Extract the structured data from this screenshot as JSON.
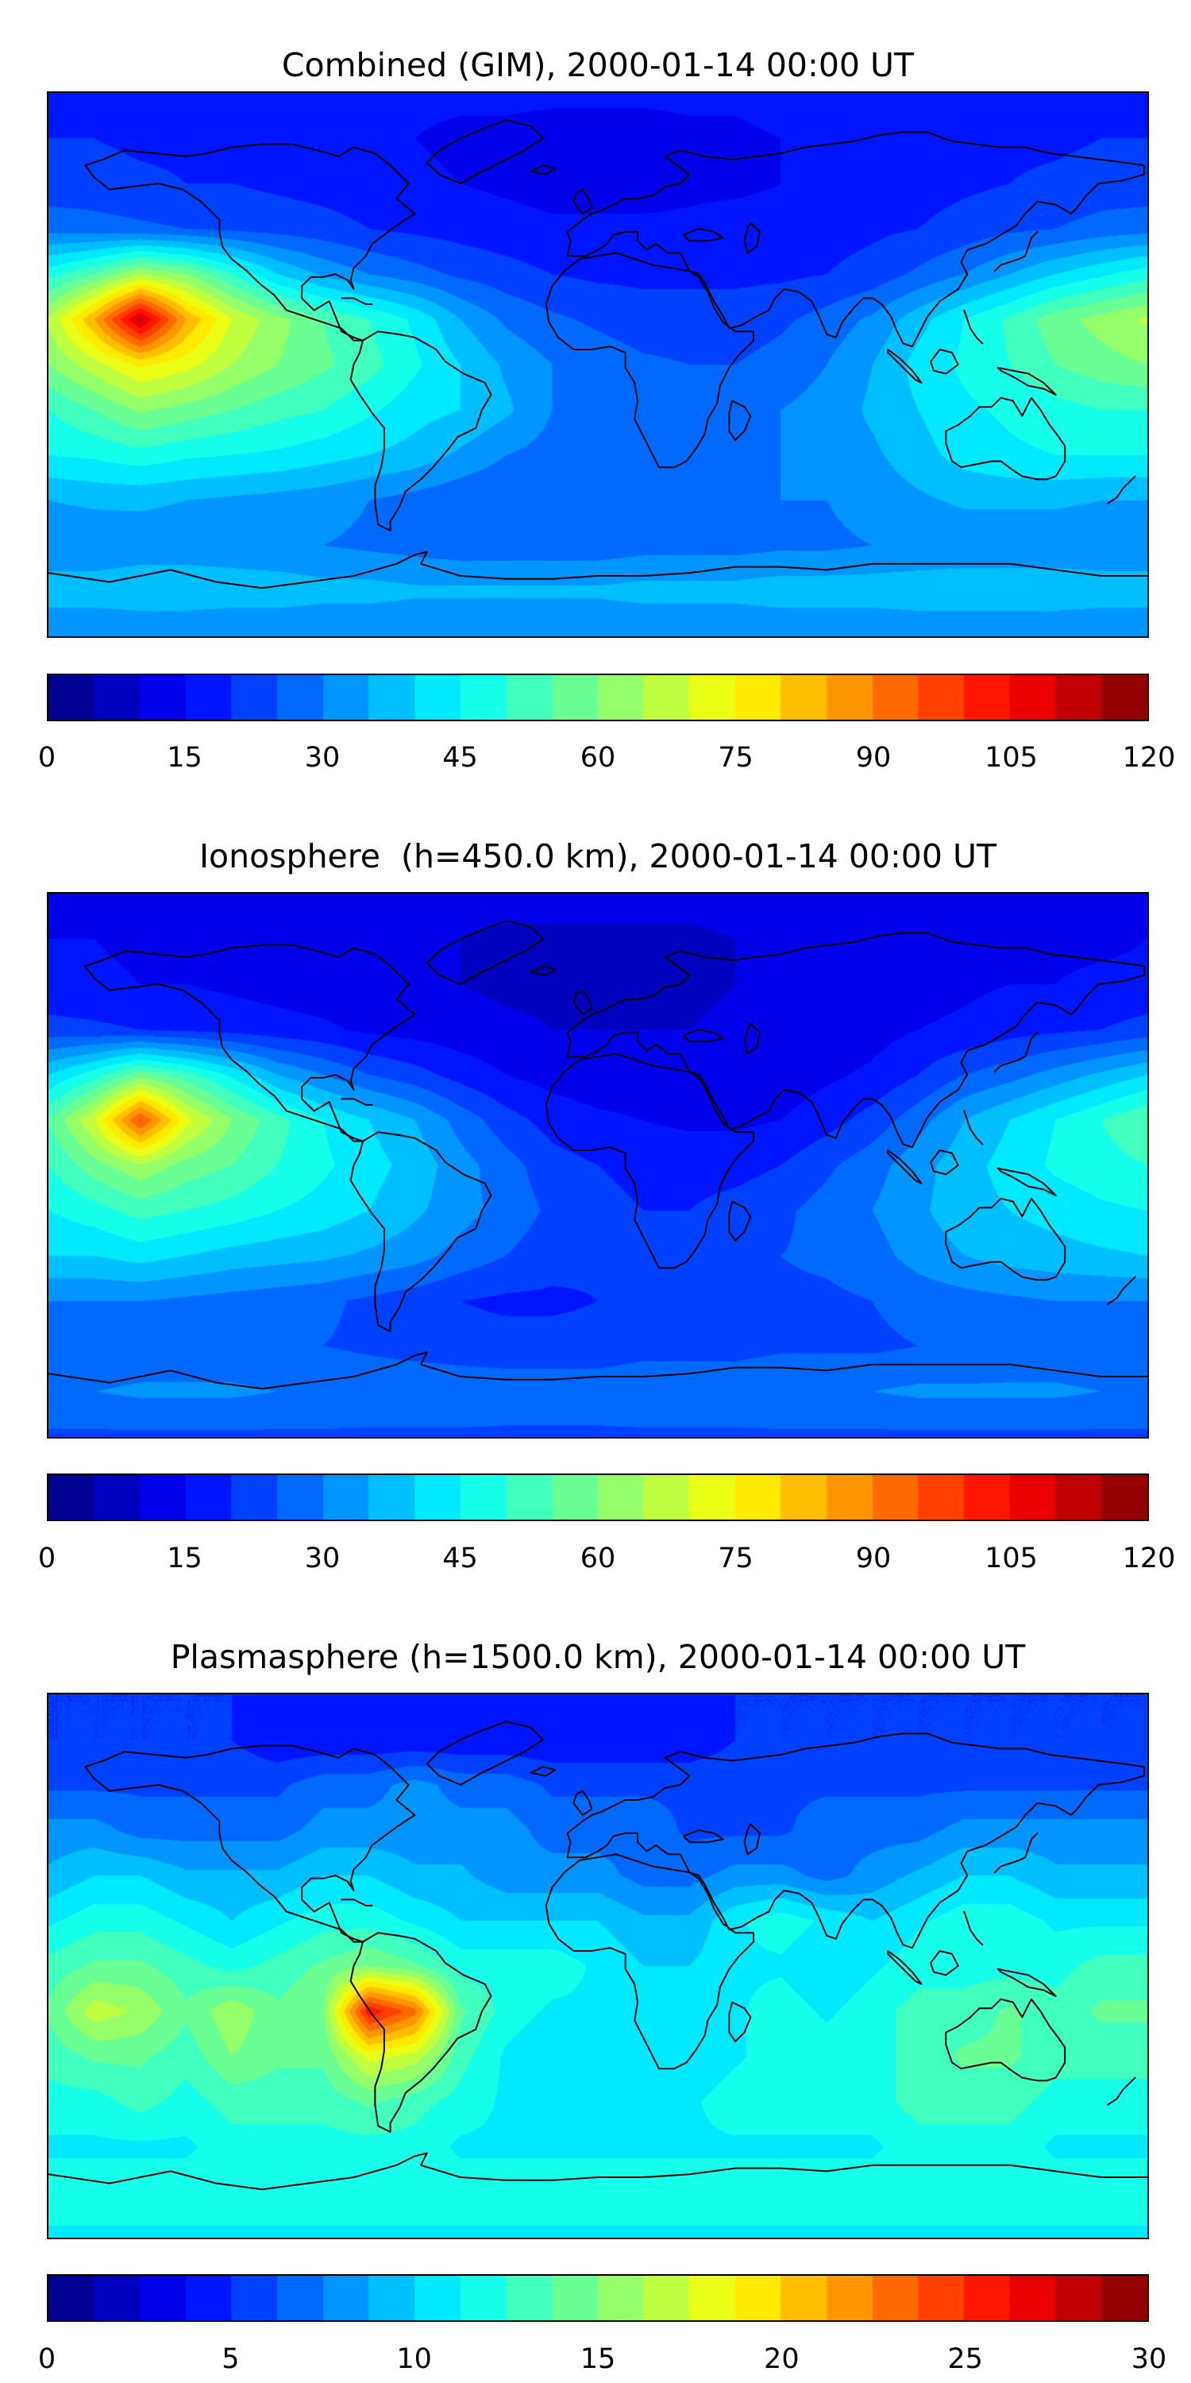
{
  "chart_data": [
    {
      "type": "heatmap",
      "title": "Combined (GIM), 2000-01-14 00:00 UT",
      "colormap": "jet",
      "projection": "equirectangular",
      "lon_range": [
        -180,
        180
      ],
      "lat_range": [
        -90,
        90
      ],
      "value_range": [
        0,
        120
      ],
      "contour_interval": 5,
      "colorbar_segments": 24,
      "colorbar_tick_values": [
        0,
        15,
        30,
        45,
        60,
        75,
        90,
        105,
        120
      ],
      "colorbar_tick_labels": [
        "0",
        "15",
        "30",
        "45",
        "60",
        "75",
        "90",
        "105",
        "120"
      ],
      "grid_lon_start": -180,
      "grid_lon_step": 15,
      "grid_lat_start": 90,
      "grid_lat_step": -15,
      "values": [
        [
          18,
          18,
          18,
          18,
          18,
          18,
          17,
          17,
          16,
          16,
          16,
          16,
          16,
          16,
          16,
          16,
          17,
          17,
          17,
          18,
          18,
          18,
          18,
          18,
          18
        ],
        [
          20,
          20,
          19,
          19,
          18,
          18,
          17,
          16,
          15,
          14,
          14,
          13,
          13,
          13,
          14,
          14,
          15,
          15,
          16,
          17,
          18,
          19,
          19,
          20,
          20
        ],
        [
          22,
          22,
          21,
          20,
          20,
          19,
          18,
          17,
          16,
          15,
          14,
          13,
          13,
          13,
          14,
          14,
          15,
          16,
          17,
          18,
          19,
          20,
          21,
          22,
          22
        ],
        [
          28,
          27,
          26,
          25,
          24,
          23,
          22,
          20,
          19,
          18,
          17,
          16,
          16,
          16,
          16,
          17,
          17,
          18,
          19,
          20,
          22,
          24,
          25,
          27,
          28
        ],
        [
          48,
          55,
          65,
          60,
          50,
          40,
          34,
          30,
          27,
          24,
          22,
          20,
          19,
          19,
          19,
          19,
          19,
          20,
          22,
          26,
          30,
          35,
          40,
          44,
          48
        ],
        [
          66,
          85,
          112,
          85,
          70,
          62,
          55,
          50,
          44,
          35,
          29,
          26,
          24,
          22,
          22,
          22,
          24,
          27,
          31,
          38,
          45,
          51,
          58,
          62,
          66
        ],
        [
          60,
          68,
          76,
          72,
          65,
          60,
          56,
          52,
          46,
          40,
          34,
          30,
          28,
          26,
          25,
          25,
          27,
          30,
          35,
          42,
          46,
          50,
          55,
          58,
          60
        ],
        [
          50,
          55,
          61,
          58,
          55,
          52,
          50,
          46,
          42,
          40,
          36,
          30,
          28,
          26,
          26,
          28,
          30,
          32,
          36,
          40,
          44,
          46,
          48,
          50,
          50
        ],
        [
          45,
          46,
          48,
          46,
          45,
          44,
          42,
          40,
          38,
          34,
          30,
          28,
          26,
          26,
          28,
          30,
          30,
          32,
          34,
          38,
          42,
          44,
          45,
          45,
          45
        ],
        [
          35,
          36,
          36,
          35,
          34,
          33,
          32,
          30,
          28,
          26,
          25,
          25,
          26,
          27,
          28,
          29,
          30,
          30,
          32,
          34,
          36,
          36,
          36,
          35,
          35
        ],
        [
          31,
          31,
          32,
          32,
          32,
          31,
          30,
          29,
          28,
          27,
          27,
          27,
          27,
          28,
          28,
          28,
          29,
          29,
          30,
          30,
          31,
          31,
          31,
          31,
          31
        ],
        [
          38,
          38,
          39,
          39,
          38,
          38,
          37,
          37,
          36,
          36,
          36,
          36,
          36,
          37,
          37,
          37,
          38,
          38,
          38,
          39,
          39,
          39,
          39,
          38,
          38
        ],
        [
          30,
          30,
          30,
          30,
          30,
          30,
          30,
          30,
          30,
          30,
          30,
          30,
          30,
          30,
          30,
          30,
          30,
          30,
          30,
          30,
          30,
          30,
          30,
          30,
          30
        ]
      ]
    },
    {
      "type": "heatmap",
      "title": "Ionosphere  (h=450.0 km), 2000-01-14 00:00 UT",
      "colormap": "jet",
      "projection": "equirectangular",
      "lon_range": [
        -180,
        180
      ],
      "lat_range": [
        -90,
        90
      ],
      "value_range": [
        0,
        120
      ],
      "contour_interval": 5,
      "colorbar_segments": 24,
      "colorbar_tick_values": [
        0,
        15,
        30,
        45,
        60,
        75,
        90,
        105,
        120
      ],
      "colorbar_tick_labels": [
        "0",
        "15",
        "30",
        "45",
        "60",
        "75",
        "90",
        "105",
        "120"
      ],
      "grid_lon_start": -180,
      "grid_lon_step": 15,
      "grid_lat_start": 90,
      "grid_lat_step": -15,
      "values": [
        [
          14,
          14,
          14,
          14,
          14,
          13,
          13,
          12,
          12,
          12,
          12,
          12,
          12,
          12,
          12,
          12,
          12,
          13,
          13,
          13,
          14,
          14,
          14,
          14,
          14
        ],
        [
          15,
          15,
          14,
          14,
          13,
          13,
          12,
          11,
          10,
          10,
          9,
          9,
          9,
          9,
          9,
          10,
          10,
          11,
          11,
          12,
          13,
          13,
          14,
          14,
          15
        ],
        [
          16,
          16,
          15,
          15,
          14,
          13,
          12,
          11,
          10,
          10,
          9,
          9,
          9,
          9,
          9,
          10,
          10,
          11,
          12,
          13,
          14,
          15,
          15,
          16,
          16
        ],
        [
          22,
          21,
          20,
          19,
          18,
          17,
          16,
          14,
          13,
          12,
          11,
          10,
          10,
          10,
          10,
          11,
          11,
          12,
          13,
          15,
          16,
          18,
          19,
          20,
          22
        ],
        [
          40,
          48,
          58,
          52,
          44,
          35,
          30,
          25,
          22,
          18,
          15,
          13,
          12,
          12,
          11,
          11,
          12,
          14,
          16,
          20,
          25,
          28,
          32,
          36,
          40
        ],
        [
          55,
          70,
          96,
          72,
          60,
          52,
          45,
          40,
          35,
          28,
          22,
          18,
          16,
          15,
          14,
          14,
          15,
          18,
          22,
          28,
          35,
          40,
          45,
          50,
          55
        ],
        [
          50,
          58,
          64,
          58,
          55,
          50,
          46,
          42,
          38,
          32,
          27,
          22,
          20,
          18,
          18,
          18,
          20,
          24,
          28,
          33,
          38,
          42,
          46,
          48,
          50
        ],
        [
          45,
          48,
          52,
          50,
          48,
          45,
          43,
          40,
          36,
          32,
          28,
          24,
          22,
          20,
          20,
          22,
          24,
          27,
          30,
          34,
          38,
          40,
          42,
          44,
          45
        ],
        [
          40,
          40,
          42,
          40,
          38,
          37,
          36,
          34,
          32,
          28,
          25,
          22,
          21,
          21,
          22,
          24,
          25,
          26,
          28,
          32,
          35,
          37,
          38,
          39,
          40
        ],
        [
          30,
          30,
          30,
          29,
          28,
          27,
          26,
          24,
          22,
          20,
          19,
          19,
          20,
          21,
          22,
          23,
          24,
          24,
          25,
          27,
          28,
          29,
          30,
          30,
          30
        ],
        [
          25,
          25,
          26,
          26,
          26,
          25,
          25,
          24,
          23,
          22,
          22,
          22,
          22,
          23,
          23,
          23,
          24,
          24,
          24,
          25,
          25,
          26,
          26,
          25,
          25
        ],
        [
          30,
          30,
          31,
          31,
          31,
          30,
          30,
          29,
          29,
          29,
          28,
          28,
          28,
          29,
          29,
          29,
          30,
          30,
          30,
          31,
          31,
          31,
          31,
          30,
          30
        ],
        [
          24,
          24,
          24,
          24,
          24,
          24,
          24,
          24,
          24,
          24,
          24,
          24,
          24,
          24,
          24,
          24,
          24,
          24,
          24,
          24,
          24,
          24,
          24,
          24,
          24
        ]
      ]
    },
    {
      "type": "heatmap",
      "title": "Plasmasphere (h=1500.0 km), 2000-01-14 00:00 UT",
      "colormap": "jet",
      "projection": "equirectangular",
      "lon_range": [
        -180,
        180
      ],
      "lat_range": [
        -90,
        90
      ],
      "value_range": [
        0,
        30
      ],
      "contour_interval": 1.25,
      "colorbar_segments": 24,
      "colorbar_tick_values": [
        0,
        5,
        10,
        15,
        20,
        25,
        30
      ],
      "colorbar_tick_labels": [
        "0",
        "5",
        "10",
        "15",
        "20",
        "25",
        "30"
      ],
      "grid_lon_start": -180,
      "grid_lon_step": 15,
      "grid_lat_start": 90,
      "grid_lat_step": -15,
      "values": [
        [
          5,
          5,
          5,
          5,
          5,
          5,
          5,
          5,
          5,
          5,
          5,
          5,
          5,
          5,
          5,
          5,
          5,
          5,
          5,
          5,
          5,
          5,
          5,
          5,
          5
        ],
        [
          5,
          5,
          5,
          5,
          5,
          4,
          4,
          4,
          4,
          4,
          4,
          4,
          4,
          4,
          4,
          5,
          5,
          5,
          5,
          5,
          5,
          5,
          5,
          5,
          5
        ],
        [
          6,
          6,
          6,
          6,
          6,
          6,
          7,
          7,
          8,
          7,
          7,
          6,
          6,
          6,
          6,
          6,
          6,
          6,
          6,
          6,
          6,
          6,
          6,
          6,
          6
        ],
        [
          8,
          8,
          7,
          7,
          7,
          7,
          8,
          8,
          8,
          8,
          8,
          7,
          7,
          7,
          6,
          6,
          6,
          7,
          7,
          7,
          8,
          8,
          8,
          8,
          8
        ],
        [
          9,
          10,
          10,
          9,
          9,
          9,
          10,
          10,
          9,
          9,
          8,
          8,
          8,
          7,
          7,
          8,
          8,
          7,
          8,
          9,
          10,
          10,
          9,
          9,
          9
        ],
        [
          11,
          12,
          12,
          11,
          10,
          11,
          12,
          12,
          11,
          10,
          10,
          10,
          10,
          9,
          9,
          11,
          12,
          11,
          10,
          11,
          12,
          12,
          11,
          11,
          11
        ],
        [
          13,
          14,
          14,
          13,
          12,
          13,
          14,
          15,
          14,
          12,
          12,
          12,
          11,
          10,
          10,
          11,
          11,
          10,
          11,
          12,
          12,
          12,
          12,
          13,
          13
        ],
        [
          14,
          17,
          16,
          14,
          16,
          14,
          15,
          26,
          23,
          14,
          12,
          11,
          11,
          11,
          10,
          11,
          12,
          11,
          12,
          13,
          13,
          14,
          13,
          14,
          14
        ],
        [
          13,
          14,
          14,
          13,
          15,
          14,
          14,
          18,
          17,
          13,
          11,
          10,
          10,
          10,
          10,
          11,
          12,
          12,
          12,
          13,
          14,
          14,
          13,
          13,
          13
        ],
        [
          12,
          12,
          13,
          12,
          13,
          13,
          13,
          14,
          13,
          12,
          11,
          11,
          11,
          11,
          11,
          12,
          12,
          12,
          12,
          13,
          13,
          13,
          12,
          12,
          12
        ],
        [
          11,
          11,
          11,
          11,
          12,
          12,
          12,
          12,
          12,
          11,
          11,
          11,
          11,
          11,
          11,
          11,
          11,
          11,
          11,
          12,
          12,
          12,
          11,
          11,
          11
        ],
        [
          12,
          12,
          12,
          12,
          12,
          12,
          12,
          12,
          12,
          12,
          12,
          12,
          12,
          12,
          12,
          12,
          12,
          12,
          12,
          12,
          12,
          12,
          12,
          12,
          12
        ],
        [
          11,
          11,
          11,
          11,
          11,
          11,
          11,
          11,
          11,
          11,
          11,
          11,
          11,
          11,
          11,
          11,
          11,
          11,
          11,
          11,
          11,
          11,
          11,
          11,
          11
        ]
      ]
    }
  ]
}
